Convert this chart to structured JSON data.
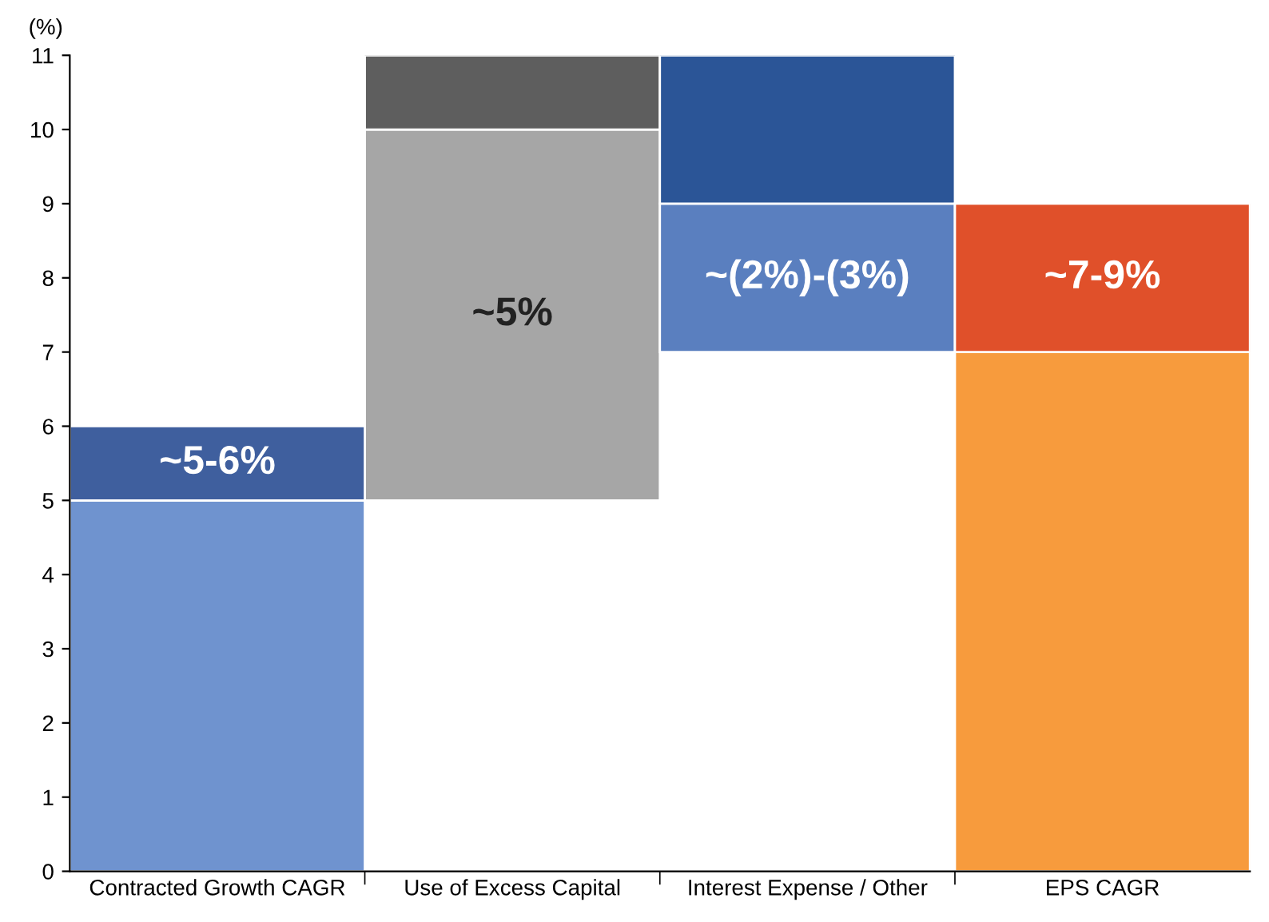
{
  "chart_data": {
    "type": "bar",
    "ylabel": "(%)",
    "categories": [
      "Contracted Growth CAGR",
      "Use of Excess Capital",
      "Interest Expense / Other",
      "EPS CAGR"
    ],
    "series": [
      {
        "colors": [
          "#6f93cf",
          "#a6a6a6",
          "#5a7fbf",
          "#f79b3d"
        ],
        "base": [
          0,
          5,
          7,
          0
        ],
        "values": [
          5,
          5,
          2,
          7
        ]
      },
      {
        "colors": [
          "#3f5f9e",
          "#5e5e5e",
          "#2b5597",
          "#e0502a"
        ],
        "base": [
          5,
          10,
          9,
          7
        ],
        "values": [
          1,
          1,
          2,
          2
        ]
      }
    ],
    "ylim": [
      0,
      11
    ],
    "yticks": [
      0,
      1,
      2,
      3,
      4,
      5,
      6,
      7,
      8,
      9,
      10,
      11
    ],
    "grid": false,
    "legend": false,
    "annotations": [
      "~5-6%",
      "~5%",
      "~(2%)-(3%)",
      "~7-9%"
    ]
  }
}
